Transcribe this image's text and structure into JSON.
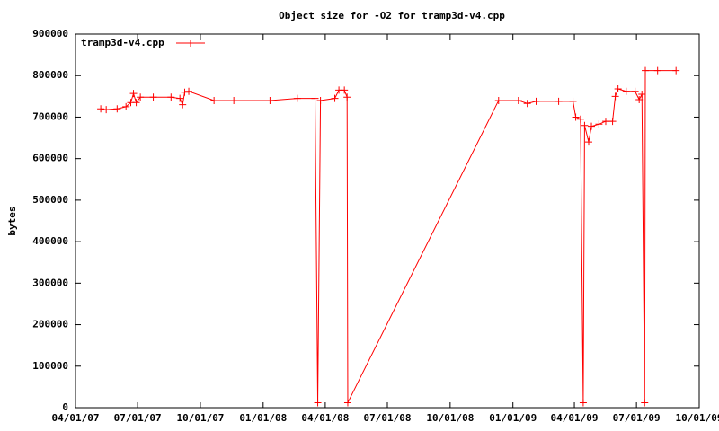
{
  "chart_data": {
    "type": "line",
    "title": "Object size for -O2 for tramp3d-v4.cpp",
    "ylabel": "bytes",
    "x": [
      "2007-05-08",
      "2007-05-16",
      "2007-06-01",
      "2007-06-14",
      "2007-06-21",
      "2007-06-25",
      "2007-06-29",
      "2007-07-05",
      "2007-07-24",
      "2007-08-19",
      "2007-09-01",
      "2007-09-05",
      "2007-09-08",
      "2007-09-14",
      "2007-10-21",
      "2007-11-19",
      "2008-01-11",
      "2008-02-20",
      "2008-03-17",
      "2008-03-21",
      "2008-03-25",
      "2008-04-15",
      "2008-04-21",
      "2008-04-29",
      "2008-05-03",
      "2008-05-04",
      "2008-12-11",
      "2009-01-09",
      "2009-01-22",
      "2009-02-04",
      "2009-03-09",
      "2009-03-30",
      "2009-04-03",
      "2009-04-10",
      "2009-04-14",
      "2009-04-16",
      "2009-04-22",
      "2009-04-26",
      "2009-05-07",
      "2009-05-17",
      "2009-05-27",
      "2009-05-31",
      "2009-06-04",
      "2009-06-16",
      "2009-06-29",
      "2009-07-05",
      "2009-07-09",
      "2009-07-13",
      "2009-07-14",
      "2009-08-01",
      "2009-08-28"
    ],
    "series": [
      {
        "name": "tramp3d-v4.cpp",
        "color": "#ff0000",
        "values": [
          720000,
          718000,
          720000,
          725000,
          735000,
          757000,
          735000,
          748000,
          748000,
          748000,
          745000,
          730000,
          760000,
          762000,
          740000,
          740000,
          740000,
          745000,
          745000,
          12000,
          740000,
          745000,
          765000,
          765000,
          748000,
          12000,
          740000,
          740000,
          733000,
          738000,
          738000,
          738000,
          700000,
          695000,
          12000,
          680000,
          640000,
          678000,
          683000,
          690000,
          690000,
          750000,
          768000,
          762000,
          762000,
          742000,
          755000,
          12000,
          812000,
          812000,
          812000
        ]
      }
    ],
    "xlim": [
      "2007-04-01",
      "2009-10-01"
    ],
    "xticks": [
      {
        "value": "2007-04-01",
        "label": "04/01/07"
      },
      {
        "value": "2007-07-01",
        "label": "07/01/07"
      },
      {
        "value": "2007-10-01",
        "label": "10/01/07"
      },
      {
        "value": "2008-01-01",
        "label": "01/01/08"
      },
      {
        "value": "2008-04-01",
        "label": "04/01/08"
      },
      {
        "value": "2008-07-01",
        "label": "07/01/08"
      },
      {
        "value": "2008-10-01",
        "label": "10/01/08"
      },
      {
        "value": "2009-01-01",
        "label": "01/01/09"
      },
      {
        "value": "2009-04-01",
        "label": "04/01/09"
      },
      {
        "value": "2009-07-01",
        "label": "07/01/09"
      },
      {
        "value": "2009-10-01",
        "label": "10/01/09"
      }
    ],
    "ylim": [
      0,
      900000
    ],
    "yticks": [
      0,
      100000,
      200000,
      300000,
      400000,
      500000,
      600000,
      700000,
      800000,
      900000
    ],
    "legend": "top-left",
    "grid": false
  }
}
